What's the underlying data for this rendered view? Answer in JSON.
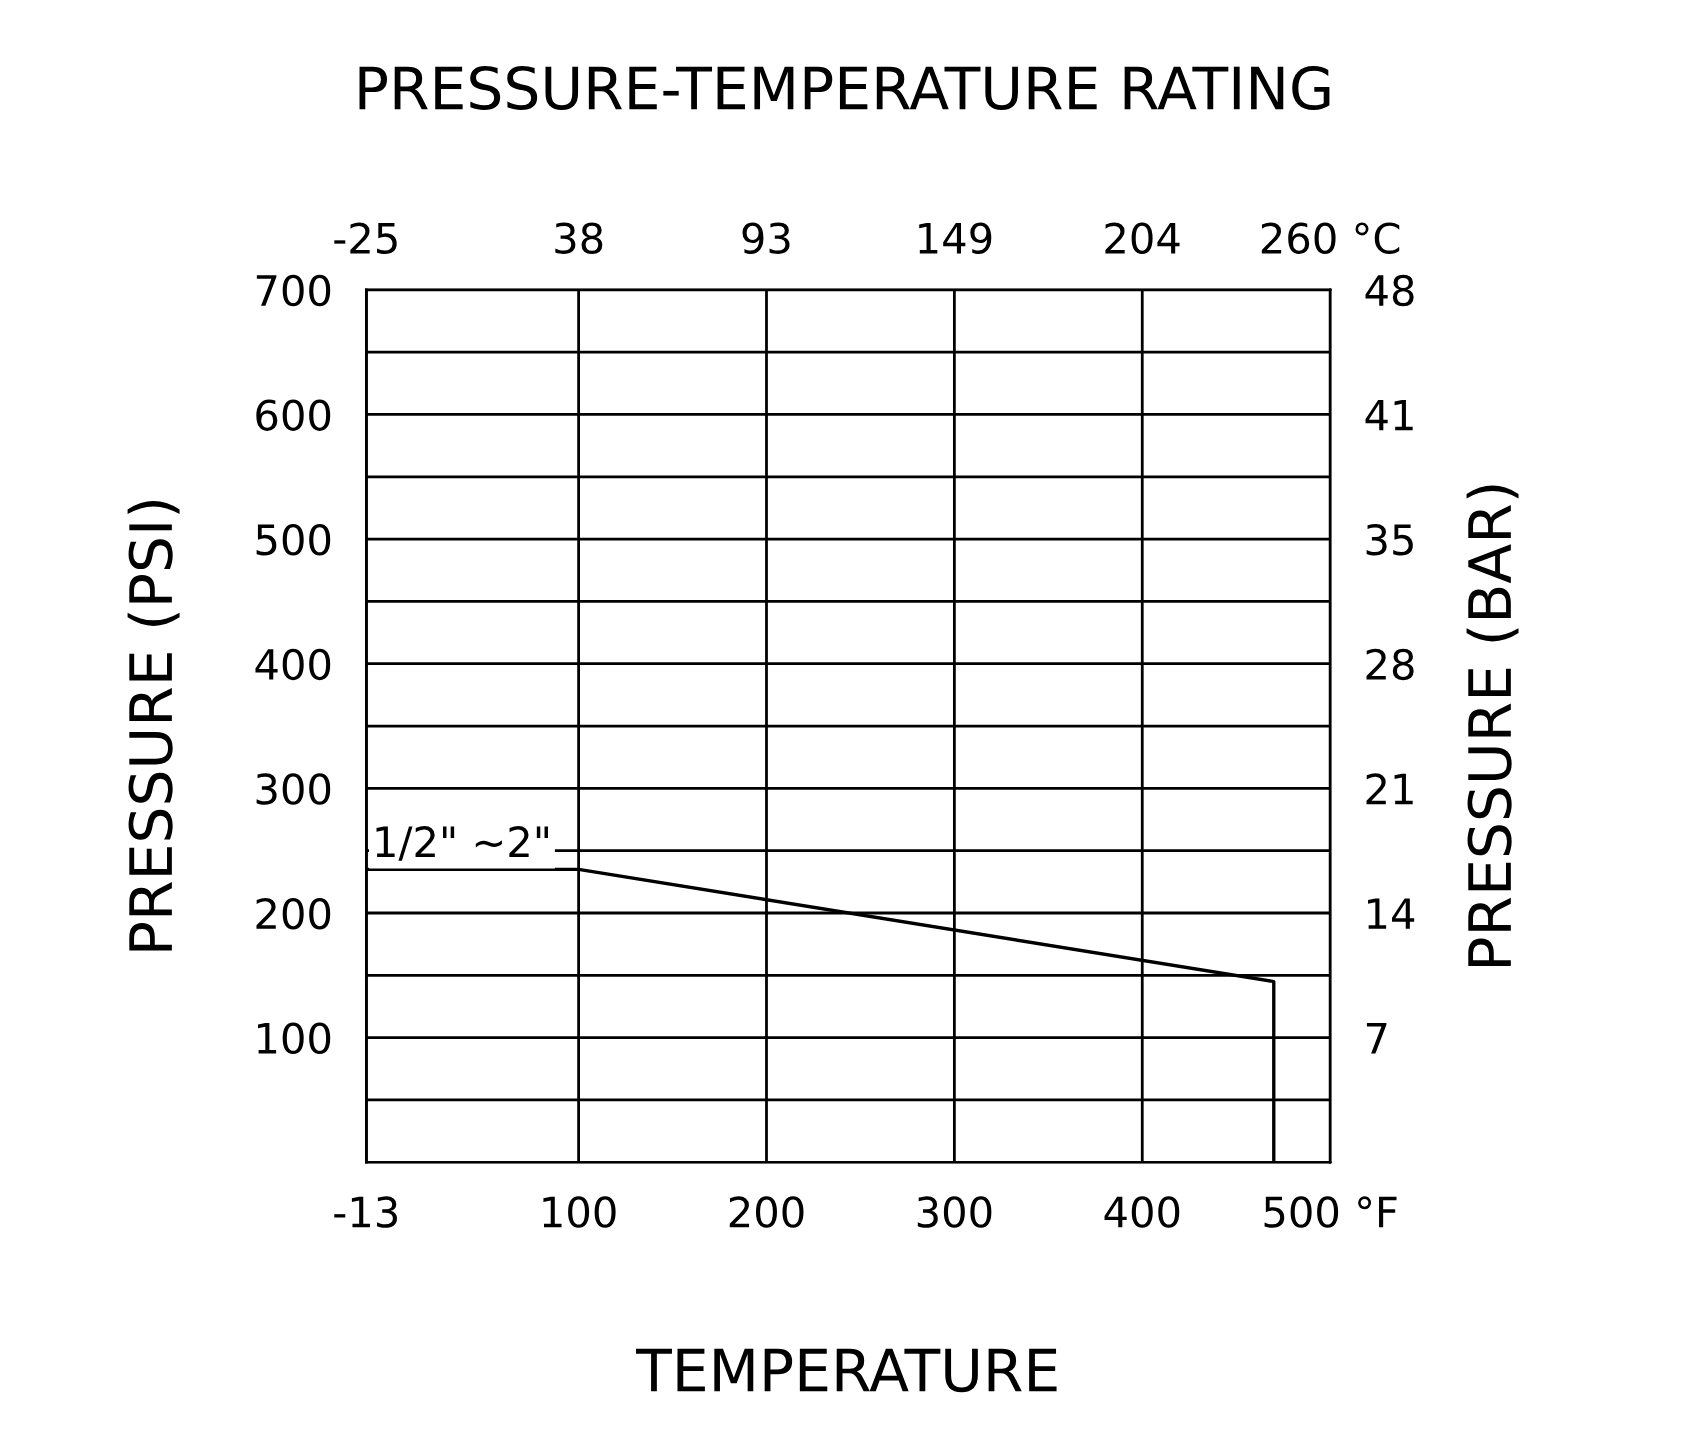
{
  "chart_data": {
    "type": "line",
    "title": "PRESSURE-TEMPERATURE RATING",
    "xlabel": "TEMPERATURE",
    "ylabel": "PRESSURE (PSI)",
    "y2label": "PRESSURE (BAR)",
    "x": [
      -13,
      100,
      470,
      470
    ],
    "series": [
      {
        "name": "1/2\" ~2\"",
        "color": "#000000",
        "values": [
          235,
          235,
          145,
          0
        ]
      }
    ],
    "xlim": [
      -13,
      500
    ],
    "xticks": [
      -13,
      100,
      200,
      300,
      400,
      {
        "value": 500,
        "label": "500 °F"
      }
    ],
    "x2lim": [
      -25,
      260
    ],
    "x2ticks": [
      -25,
      {
        "value": 37.8,
        "label": "38"
      },
      {
        "value": 93.3,
        "label": "93"
      },
      {
        "value": 148.9,
        "label": "149"
      },
      {
        "value": 204.4,
        "label": "204"
      },
      {
        "value": 260,
        "label": "260 °C"
      }
    ],
    "ylim": [
      0,
      700
    ],
    "yticks": [
      {
        "value": 50,
        "label": null
      },
      100,
      {
        "value": 150,
        "label": null
      },
      200,
      {
        "value": 250,
        "label": null
      },
      300,
      {
        "value": 350,
        "label": null
      },
      400,
      {
        "value": 450,
        "label": null
      },
      500,
      {
        "value": 550,
        "label": null
      },
      600,
      {
        "value": 650,
        "label": null
      },
      700
    ],
    "y2lim": [
      0,
      48.3
    ],
    "y2ticks": [
      {
        "value": 6.9,
        "label": "7"
      },
      {
        "value": 13.8,
        "label": "14"
      },
      {
        "value": 20.7,
        "label": "21"
      },
      {
        "value": 27.6,
        "label": "28"
      },
      {
        "value": 34.5,
        "label": "35"
      },
      {
        "value": 41.4,
        "label": "41"
      },
      {
        "value": 48.3,
        "label": "48"
      }
    ],
    "grid": true,
    "marker": "none",
    "line_style": "solid",
    "legend": false
  }
}
